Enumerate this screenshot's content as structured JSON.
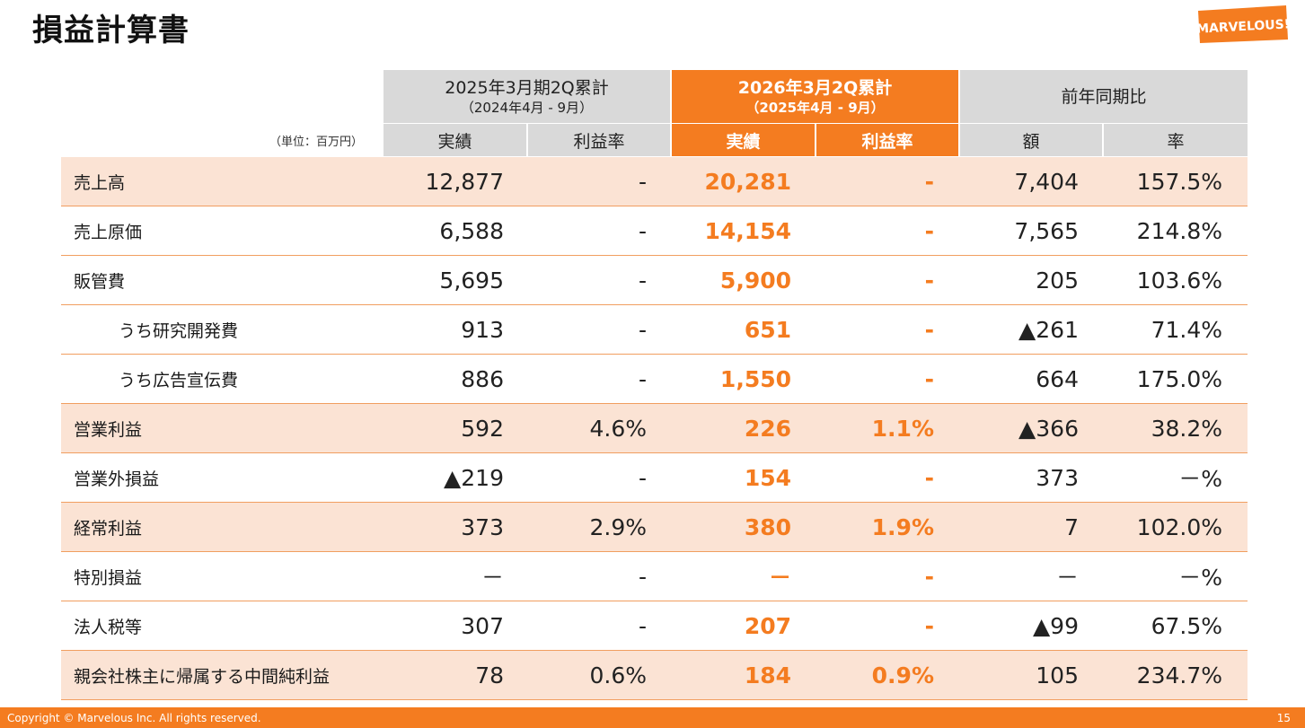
{
  "page": {
    "title": "損益計算書",
    "logo_text": "MARVELOUS!",
    "unit": "（単位：百万円）",
    "footer_copyright": "Copyright © Marvelous Inc. All rights reserved.",
    "page_number": "15"
  },
  "header": {
    "prev_period": "2025年3月期2Q累計",
    "prev_range": "（2024年4月 - 9月）",
    "curr_period": "2026年3月2Q累計",
    "curr_range": "（2025年4月 - 9月）",
    "yoy": "前年同期比",
    "sub": [
      "実績",
      "利益率",
      "実績",
      "利益率",
      "額",
      "率"
    ]
  },
  "rows": [
    {
      "label": "売上高",
      "prev_actual": "12,877",
      "prev_margin": "-",
      "curr_actual": "20,281",
      "curr_margin": "-",
      "yoy_amount": "7,404",
      "yoy_rate": "157.5%"
    },
    {
      "label": "売上原価",
      "prev_actual": "6,588",
      "prev_margin": "-",
      "curr_actual": "14,154",
      "curr_margin": "-",
      "yoy_amount": "7,565",
      "yoy_rate": "214.8%"
    },
    {
      "label": "販管費",
      "prev_actual": "5,695",
      "prev_margin": "-",
      "curr_actual": "5,900",
      "curr_margin": "-",
      "yoy_amount": "205",
      "yoy_rate": "103.6%"
    },
    {
      "label": "うち研究開発費",
      "prev_actual": "913",
      "prev_margin": "-",
      "curr_actual": "651",
      "curr_margin": "-",
      "yoy_amount": "▲261",
      "yoy_rate": "71.4%"
    },
    {
      "label": "うち広告宣伝費",
      "prev_actual": "886",
      "prev_margin": "-",
      "curr_actual": "1,550",
      "curr_margin": "-",
      "yoy_amount": "664",
      "yoy_rate": "175.0%"
    },
    {
      "label": "営業利益",
      "prev_actual": "592",
      "prev_margin": "4.6%",
      "curr_actual": "226",
      "curr_margin": "1.1%",
      "yoy_amount": "▲366",
      "yoy_rate": "38.2%"
    },
    {
      "label": "営業外損益",
      "prev_actual": "▲219",
      "prev_margin": "-",
      "curr_actual": "154",
      "curr_margin": "-",
      "yoy_amount": "373",
      "yoy_rate": "－%"
    },
    {
      "label": "経常利益",
      "prev_actual": "373",
      "prev_margin": "2.9%",
      "curr_actual": "380",
      "curr_margin": "1.9%",
      "yoy_amount": "7",
      "yoy_rate": "102.0%"
    },
    {
      "label": "特別損益",
      "prev_actual": "－",
      "prev_margin": "-",
      "curr_actual": "－",
      "curr_margin": "-",
      "yoy_amount": "－",
      "yoy_rate": "－%"
    },
    {
      "label": "法人税等",
      "prev_actual": "307",
      "prev_margin": "-",
      "curr_actual": "207",
      "curr_margin": "-",
      "yoy_amount": "▲99",
      "yoy_rate": "67.5%"
    },
    {
      "label": "親会社株主に帰属する中間純利益",
      "prev_actual": "78",
      "prev_margin": "0.6%",
      "curr_actual": "184",
      "curr_margin": "0.9%",
      "yoy_amount": "105",
      "yoy_rate": "234.7%"
    }
  ],
  "colors": {
    "accent": "#f47c20",
    "shade": "#fbe3d4",
    "header_gray": "#d9d9d9"
  }
}
